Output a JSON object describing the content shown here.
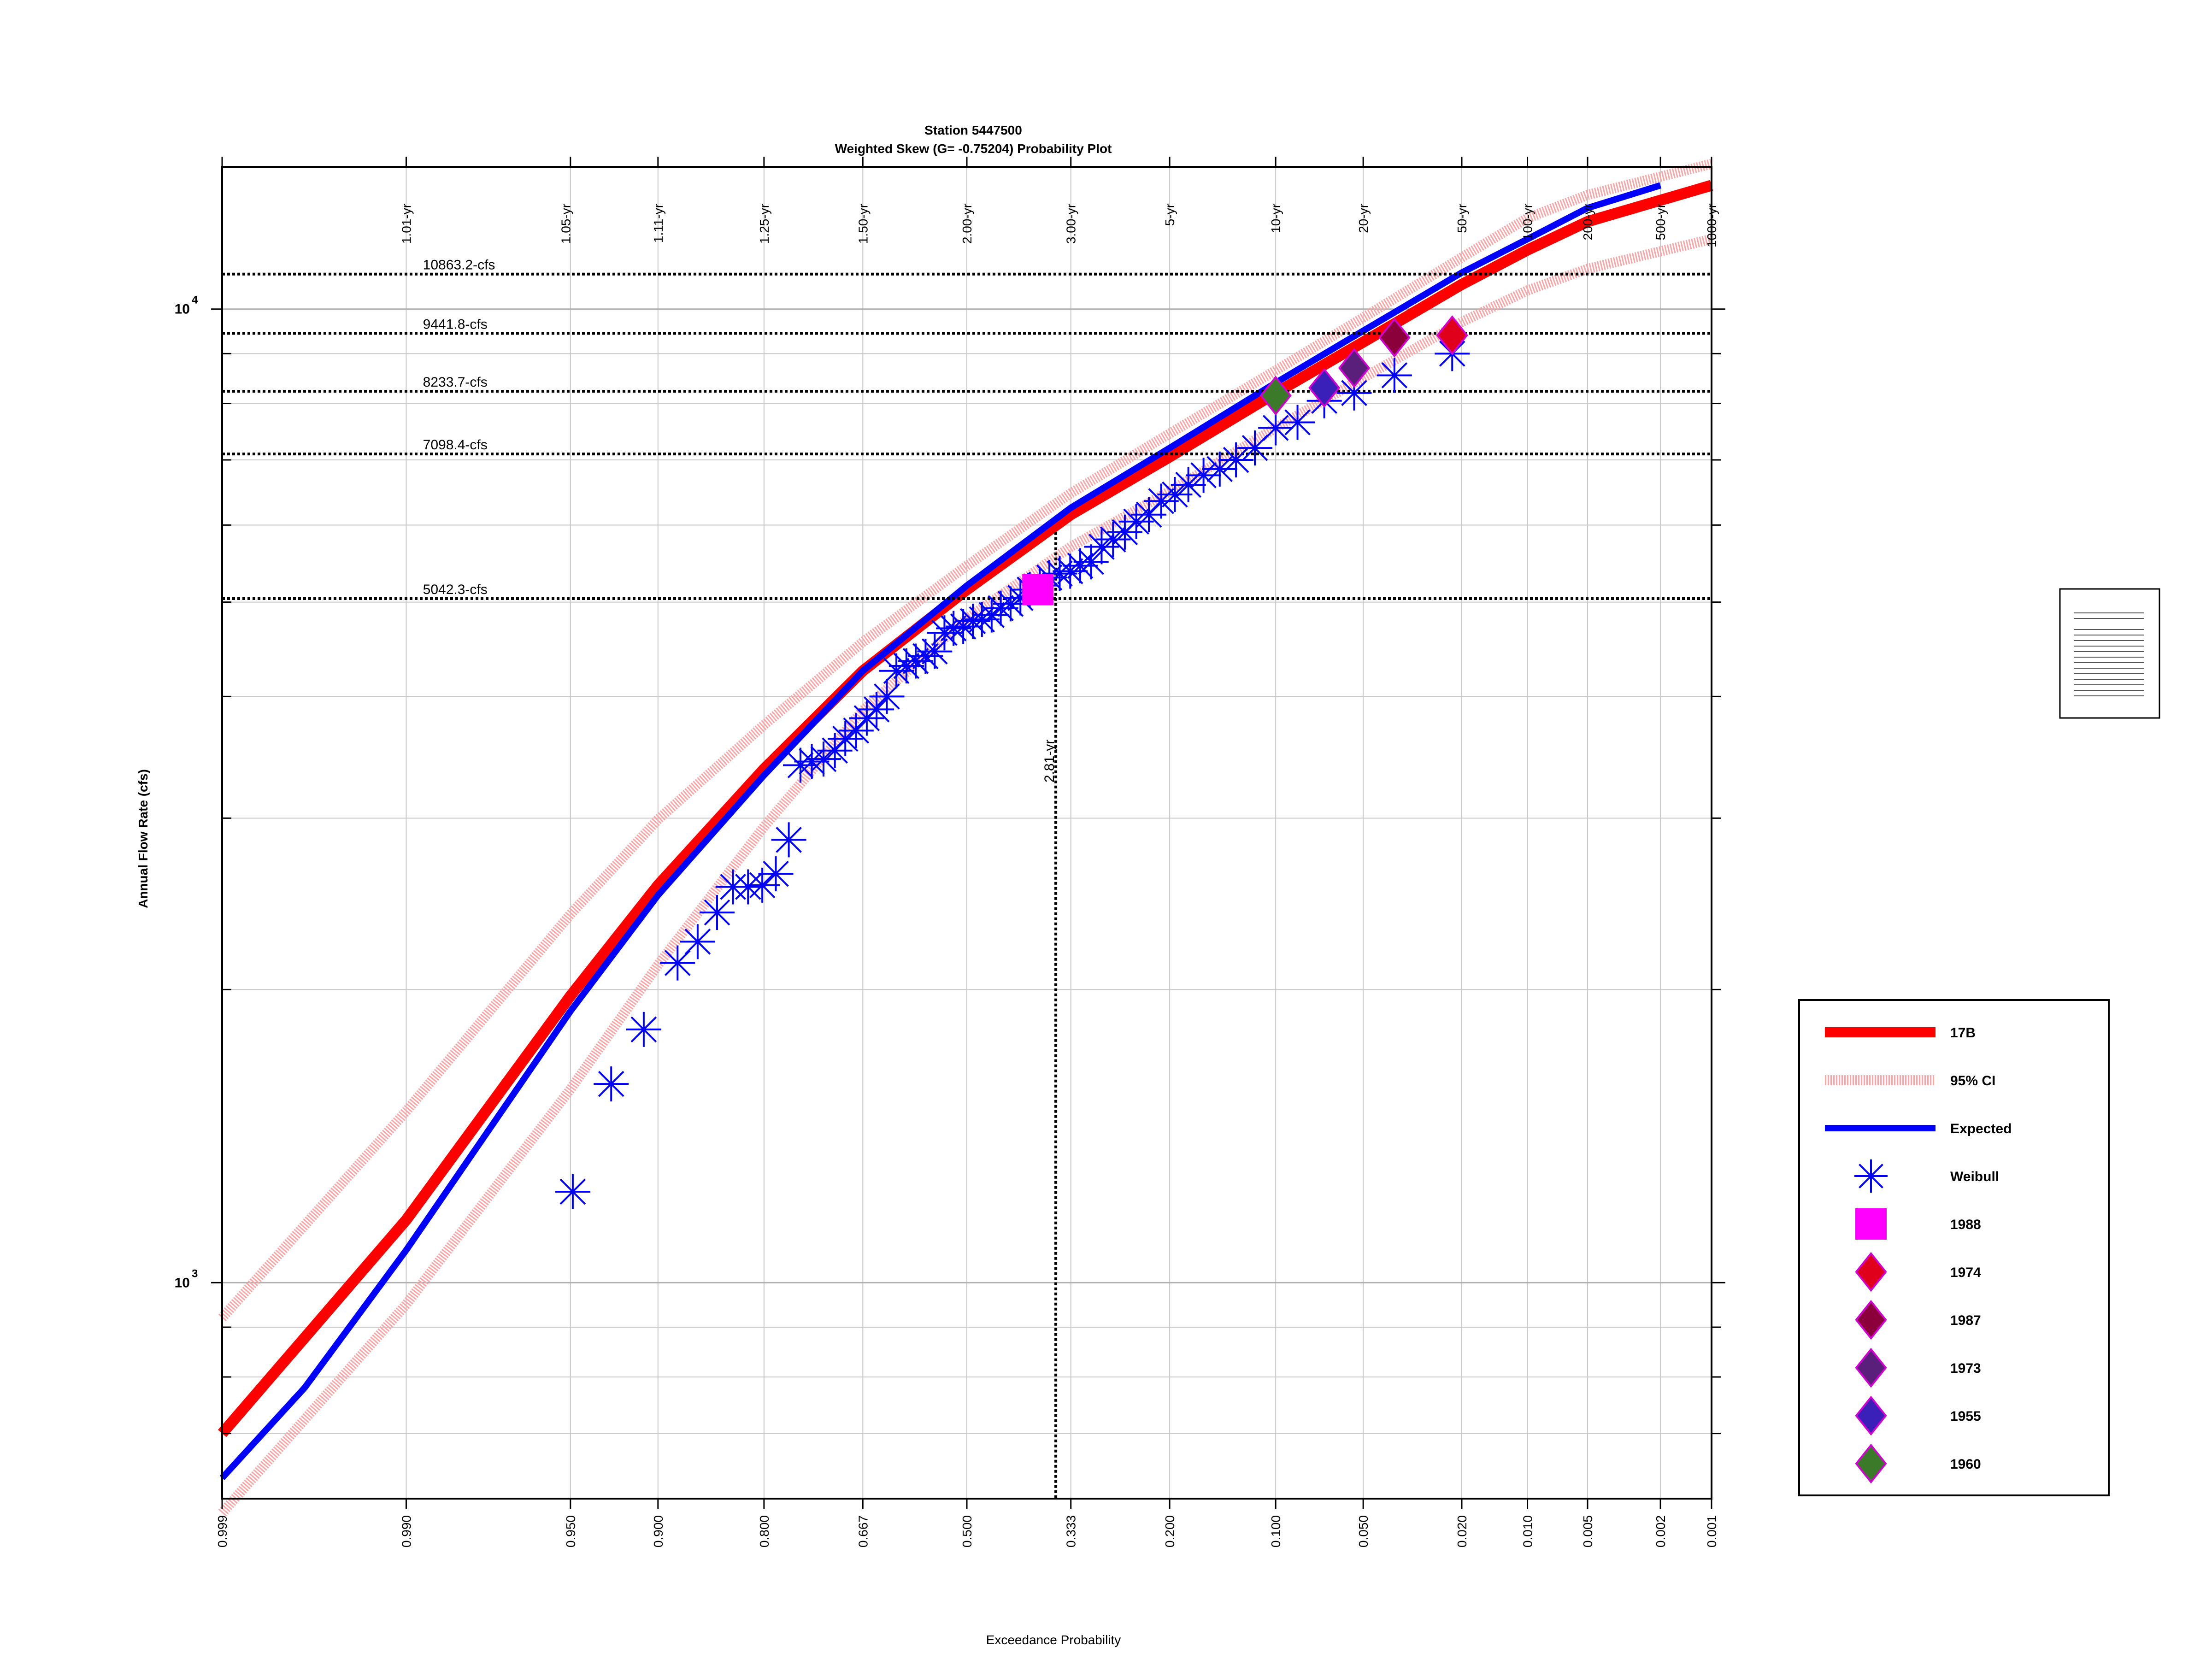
{
  "chart_data": {
    "type": "scatter",
    "title": "Station 5447500",
    "subtitle": "Weighted Skew (G= -0.75204) Probability Plot",
    "xlabel": "Exceedance Probability",
    "ylabel": "Annual Flow Rate (cfs)",
    "x_scale": "normal-probability-reversed",
    "y_scale": "log",
    "xlim": [
      0.999,
      0.001
    ],
    "ylim": [
      600,
      14000
    ],
    "grid": true,
    "x_ticks": [
      "0.999",
      "0.990",
      "0.950",
      "0.900",
      "0.800",
      "0.667",
      "0.500",
      "0.333",
      "0.200",
      "0.100",
      "0.050",
      "0.020",
      "0.010",
      "0.005",
      "0.002",
      "0.001"
    ],
    "x_tick_values": [
      0.999,
      0.99,
      0.95,
      0.9,
      0.8,
      0.667,
      0.5,
      0.333,
      0.2,
      0.1,
      0.05,
      0.02,
      0.01,
      0.005,
      0.002,
      0.001
    ],
    "return_period_labels": [
      "1.01-yr",
      "1.05-yr",
      "1.11-yr",
      "1.25-yr",
      "1.50-yr",
      "2.00-yr",
      "3.00-yr",
      "5-yr",
      "10-yr",
      "20-yr",
      "50-yr",
      "100-yr",
      "200-yr",
      "500-yr",
      "1000-yr"
    ],
    "return_period_probs": [
      0.99,
      0.952,
      0.9,
      0.8,
      0.667,
      0.5,
      0.333,
      0.2,
      0.1,
      0.05,
      0.02,
      0.01,
      0.005,
      0.002,
      0.001
    ],
    "y_major_ticks": [
      {
        "value": 1000,
        "base": "10",
        "exp": "3"
      },
      {
        "value": 10000,
        "base": "10",
        "exp": "4"
      }
    ],
    "y_minor_ticks": [
      700,
      800,
      900,
      2000,
      3000,
      4000,
      5000,
      6000,
      7000,
      8000,
      9000
    ],
    "reference_lines": [
      {
        "value": 10863.2,
        "label": "10863.2-cfs"
      },
      {
        "value": 9441.8,
        "label": "9441.8-cfs"
      },
      {
        "value": 8233.7,
        "label": "8233.7-cfs"
      },
      {
        "value": 7098.4,
        "label": "7098.4-cfs"
      },
      {
        "value": 5042.3,
        "label": "5042.3-cfs"
      }
    ],
    "return_marker": {
      "p": 0.356,
      "label": "2.81-yr",
      "flow": 5900
    },
    "series": [
      {
        "name": "17B",
        "kind": "line",
        "color": "#ff0000",
        "points": [
          [
            0.999,
            700
          ],
          [
            0.99,
            1160
          ],
          [
            0.95,
            1970
          ],
          [
            0.9,
            2560
          ],
          [
            0.8,
            3370
          ],
          [
            0.667,
            4250
          ],
          [
            0.5,
            5150
          ],
          [
            0.333,
            6150
          ],
          [
            0.2,
            7050
          ],
          [
            0.1,
            8200
          ],
          [
            0.05,
            9250
          ],
          [
            0.02,
            10600
          ],
          [
            0.01,
            11500
          ],
          [
            0.005,
            12300
          ],
          [
            0.001,
            13400
          ]
        ]
      },
      {
        "name": "95% CI",
        "kind": "ci",
        "color": "#f6a6a6",
        "upper": [
          [
            0.999,
            920
          ],
          [
            0.99,
            1500
          ],
          [
            0.95,
            2390
          ],
          [
            0.9,
            2990
          ],
          [
            0.8,
            3740
          ],
          [
            0.667,
            4550
          ],
          [
            0.5,
            5450
          ],
          [
            0.333,
            6470
          ],
          [
            0.2,
            7450
          ],
          [
            0.1,
            8650
          ],
          [
            0.05,
            9800
          ],
          [
            0.02,
            11300
          ],
          [
            0.01,
            12400
          ],
          [
            0.005,
            13100
          ],
          [
            0.001,
            14100
          ]
        ],
        "lower": [
          [
            0.999,
            580
          ],
          [
            0.99,
            950
          ],
          [
            0.95,
            1580
          ],
          [
            0.9,
            2120
          ],
          [
            0.8,
            2940
          ],
          [
            0.667,
            3870
          ],
          [
            0.5,
            4810
          ],
          [
            0.333,
            5700
          ],
          [
            0.2,
            6500
          ],
          [
            0.1,
            7550
          ],
          [
            0.05,
            8500
          ],
          [
            0.02,
            9700
          ],
          [
            0.01,
            10450
          ],
          [
            0.005,
            11000
          ],
          [
            0.001,
            11800
          ]
        ]
      },
      {
        "name": "Expected",
        "kind": "line",
        "color": "#0000ff",
        "points": [
          [
            0.999,
            630
          ],
          [
            0.997,
            780
          ],
          [
            0.99,
            1080
          ],
          [
            0.95,
            1900
          ],
          [
            0.9,
            2500
          ],
          [
            0.8,
            3320
          ],
          [
            0.667,
            4250
          ],
          [
            0.5,
            5200
          ],
          [
            0.333,
            6250
          ],
          [
            0.2,
            7200
          ],
          [
            0.1,
            8400
          ],
          [
            0.05,
            9500
          ],
          [
            0.02,
            10900
          ],
          [
            0.01,
            11800
          ],
          [
            0.005,
            12700
          ],
          [
            0.002,
            13400
          ]
        ]
      },
      {
        "name": "Weibull",
        "kind": "scatter",
        "color": "#0000ff",
        "points": [
          [
            0.949,
            1240
          ],
          [
            0.93,
            1600
          ],
          [
            0.91,
            1820
          ],
          [
            0.885,
            2130
          ],
          [
            0.868,
            2240
          ],
          [
            0.85,
            2400
          ],
          [
            0.834,
            2550
          ],
          [
            0.818,
            2550
          ],
          [
            0.802,
            2560
          ],
          [
            0.786,
            2630
          ],
          [
            0.77,
            2850
          ],
          [
            0.755,
            3400
          ],
          [
            0.74,
            3430
          ],
          [
            0.724,
            3450
          ],
          [
            0.708,
            3520
          ],
          [
            0.693,
            3620
          ],
          [
            0.677,
            3690
          ],
          [
            0.661,
            3800
          ],
          [
            0.646,
            3880
          ],
          [
            0.63,
            4000
          ],
          [
            0.615,
            4250
          ],
          [
            0.599,
            4300
          ],
          [
            0.584,
            4350
          ],
          [
            0.568,
            4400
          ],
          [
            0.553,
            4450
          ],
          [
            0.537,
            4650
          ],
          [
            0.522,
            4700
          ],
          [
            0.506,
            4720
          ],
          [
            0.49,
            4780
          ],
          [
            0.475,
            4800
          ],
          [
            0.459,
            4850
          ],
          [
            0.444,
            4930
          ],
          [
            0.428,
            4980
          ],
          [
            0.412,
            5050
          ],
          [
            0.397,
            5150
          ],
          [
            0.381,
            5200
          ],
          [
            0.366,
            5300
          ],
          [
            0.35,
            5350
          ],
          [
            0.334,
            5380
          ],
          [
            0.319,
            5450
          ],
          [
            0.303,
            5500
          ],
          [
            0.288,
            5700
          ],
          [
            0.272,
            5800
          ],
          [
            0.256,
            5900
          ],
          [
            0.241,
            6050
          ],
          [
            0.225,
            6150
          ],
          [
            0.21,
            6350
          ],
          [
            0.194,
            6450
          ],
          [
            0.179,
            6600
          ],
          [
            0.163,
            6750
          ],
          [
            0.147,
            6850
          ],
          [
            0.132,
            7000
          ],
          [
            0.116,
            7200
          ],
          [
            0.1,
            7550
          ],
          [
            0.085,
            7650
          ],
          [
            0.069,
            8050
          ],
          [
            0.054,
            8200
          ],
          [
            0.038,
            8550
          ],
          [
            0.022,
            9000
          ]
        ]
      },
      {
        "name": "1988",
        "kind": "marker",
        "shape": "square",
        "color": "#ff00ff",
        "points": [
          [
            0.384,
            5150
          ]
        ]
      },
      {
        "name": "1974",
        "kind": "marker",
        "shape": "diamond",
        "color": "#e0001c",
        "points": [
          [
            0.022,
            9400
          ]
        ]
      },
      {
        "name": "1987",
        "kind": "marker",
        "shape": "diamond",
        "color": "#8b003a",
        "points": [
          [
            0.038,
            9350
          ]
        ]
      },
      {
        "name": "1973",
        "kind": "marker",
        "shape": "diamond",
        "color": "#5a1f7a",
        "points": [
          [
            0.054,
            8700
          ]
        ]
      },
      {
        "name": "1955",
        "kind": "marker",
        "shape": "diamond",
        "color": "#3a1fb8",
        "points": [
          [
            0.069,
            8300
          ]
        ]
      },
      {
        "name": "1960",
        "kind": "marker",
        "shape": "diamond",
        "color": "#3a7a28",
        "points": [
          [
            0.1,
            8150
          ]
        ]
      }
    ],
    "legend_position": "right"
  }
}
